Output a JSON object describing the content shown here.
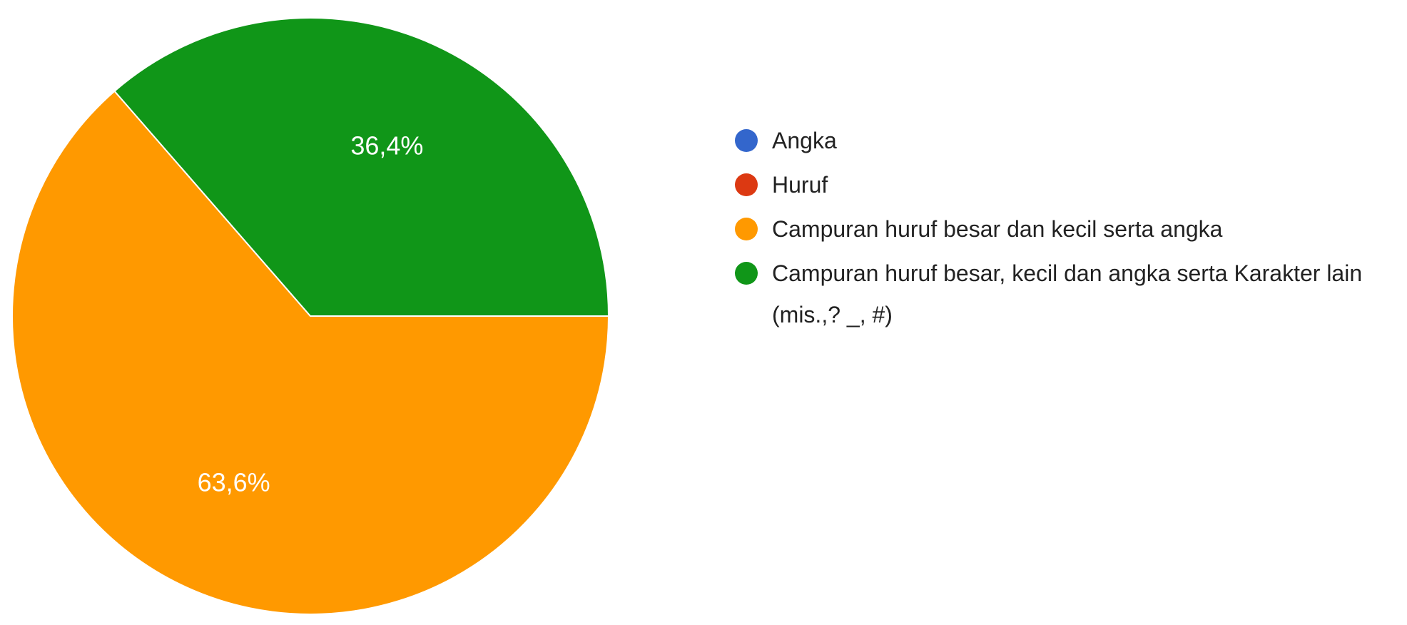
{
  "chart_data": {
    "type": "pie",
    "categories": [
      "Angka",
      "Huruf",
      "Campuran huruf besar dan kecil serta angka",
      "Campuran huruf besar, kecil dan angka serta Karakter lain (mis.,? _, #)"
    ],
    "values": [
      0,
      0,
      63.6,
      36.4
    ],
    "value_labels": [
      null,
      null,
      "63,6%",
      "36,4%"
    ],
    "colors": [
      "#3366cc",
      "#dc3912",
      "#ff9900",
      "#109618"
    ],
    "legend": "right"
  }
}
